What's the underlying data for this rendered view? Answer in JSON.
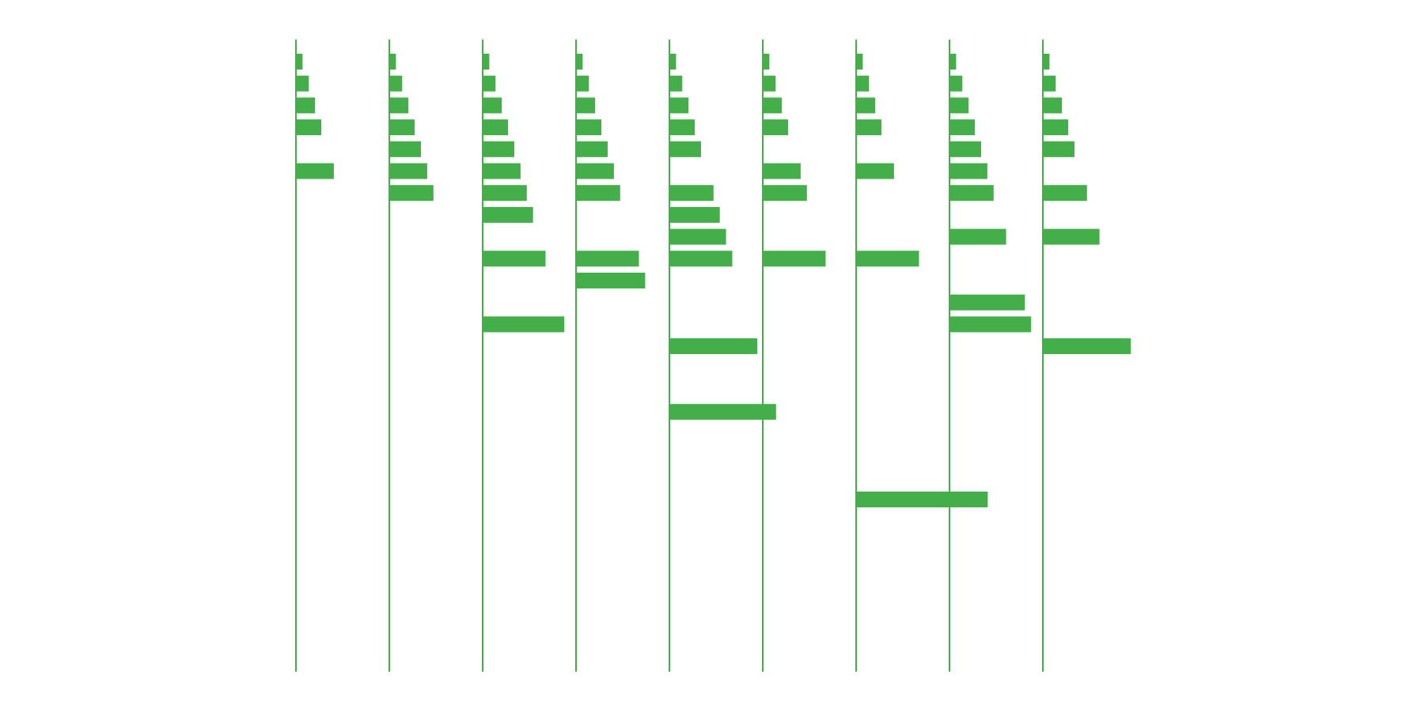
{
  "chart_data": {
    "type": "bar",
    "orientation": "horizontal",
    "layout": "small-multiples",
    "title": "",
    "xlabel": "",
    "ylabel": "",
    "grid": false,
    "legend": "none",
    "color": "#44AF48",
    "row_count": 28,
    "panels": [
      {
        "bars": [
          {
            "row": 0,
            "value": 1
          },
          {
            "row": 1,
            "value": 2
          },
          {
            "row": 2,
            "value": 3
          },
          {
            "row": 3,
            "value": 4
          },
          {
            "row": 5,
            "value": 6
          }
        ]
      },
      {
        "bars": [
          {
            "row": 0,
            "value": 1
          },
          {
            "row": 1,
            "value": 2
          },
          {
            "row": 2,
            "value": 3
          },
          {
            "row": 3,
            "value": 4
          },
          {
            "row": 4,
            "value": 5
          },
          {
            "row": 5,
            "value": 6
          },
          {
            "row": 6,
            "value": 7
          }
        ]
      },
      {
        "bars": [
          {
            "row": 0,
            "value": 1
          },
          {
            "row": 1,
            "value": 2
          },
          {
            "row": 2,
            "value": 3
          },
          {
            "row": 3,
            "value": 4
          },
          {
            "row": 4,
            "value": 5
          },
          {
            "row": 5,
            "value": 6
          },
          {
            "row": 6,
            "value": 7
          },
          {
            "row": 7,
            "value": 8
          },
          {
            "row": 9,
            "value": 10
          },
          {
            "row": 12,
            "value": 13
          }
        ]
      },
      {
        "bars": [
          {
            "row": 0,
            "value": 1
          },
          {
            "row": 1,
            "value": 2
          },
          {
            "row": 2,
            "value": 3
          },
          {
            "row": 3,
            "value": 4
          },
          {
            "row": 4,
            "value": 5
          },
          {
            "row": 5,
            "value": 6
          },
          {
            "row": 6,
            "value": 7
          },
          {
            "row": 9,
            "value": 10
          },
          {
            "row": 10,
            "value": 11
          }
        ]
      },
      {
        "bars": [
          {
            "row": 0,
            "value": 1
          },
          {
            "row": 1,
            "value": 2
          },
          {
            "row": 2,
            "value": 3
          },
          {
            "row": 3,
            "value": 4
          },
          {
            "row": 4,
            "value": 5
          },
          {
            "row": 6,
            "value": 7
          },
          {
            "row": 7,
            "value": 8
          },
          {
            "row": 8,
            "value": 9
          },
          {
            "row": 9,
            "value": 10
          },
          {
            "row": 13,
            "value": 14
          },
          {
            "row": 16,
            "value": 17
          }
        ]
      },
      {
        "bars": [
          {
            "row": 0,
            "value": 1
          },
          {
            "row": 1,
            "value": 2
          },
          {
            "row": 2,
            "value": 3
          },
          {
            "row": 3,
            "value": 4
          },
          {
            "row": 5,
            "value": 6
          },
          {
            "row": 6,
            "value": 7
          },
          {
            "row": 9,
            "value": 10
          }
        ]
      },
      {
        "bars": [
          {
            "row": 0,
            "value": 1
          },
          {
            "row": 1,
            "value": 2
          },
          {
            "row": 2,
            "value": 3
          },
          {
            "row": 3,
            "value": 4
          },
          {
            "row": 5,
            "value": 6
          },
          {
            "row": 9,
            "value": 10
          },
          {
            "row": 20,
            "value": 21
          }
        ]
      },
      {
        "bars": [
          {
            "row": 0,
            "value": 1
          },
          {
            "row": 1,
            "value": 2
          },
          {
            "row": 2,
            "value": 3
          },
          {
            "row": 3,
            "value": 4
          },
          {
            "row": 4,
            "value": 5
          },
          {
            "row": 5,
            "value": 6
          },
          {
            "row": 6,
            "value": 7
          },
          {
            "row": 8,
            "value": 9
          },
          {
            "row": 11,
            "value": 12
          },
          {
            "row": 12,
            "value": 13
          }
        ]
      },
      {
        "bars": [
          {
            "row": 0,
            "value": 1
          },
          {
            "row": 1,
            "value": 2
          },
          {
            "row": 2,
            "value": 3
          },
          {
            "row": 3,
            "value": 4
          },
          {
            "row": 4,
            "value": 5
          },
          {
            "row": 6,
            "value": 7
          },
          {
            "row": 8,
            "value": 9
          },
          {
            "row": 13,
            "value": 14
          }
        ]
      }
    ]
  }
}
